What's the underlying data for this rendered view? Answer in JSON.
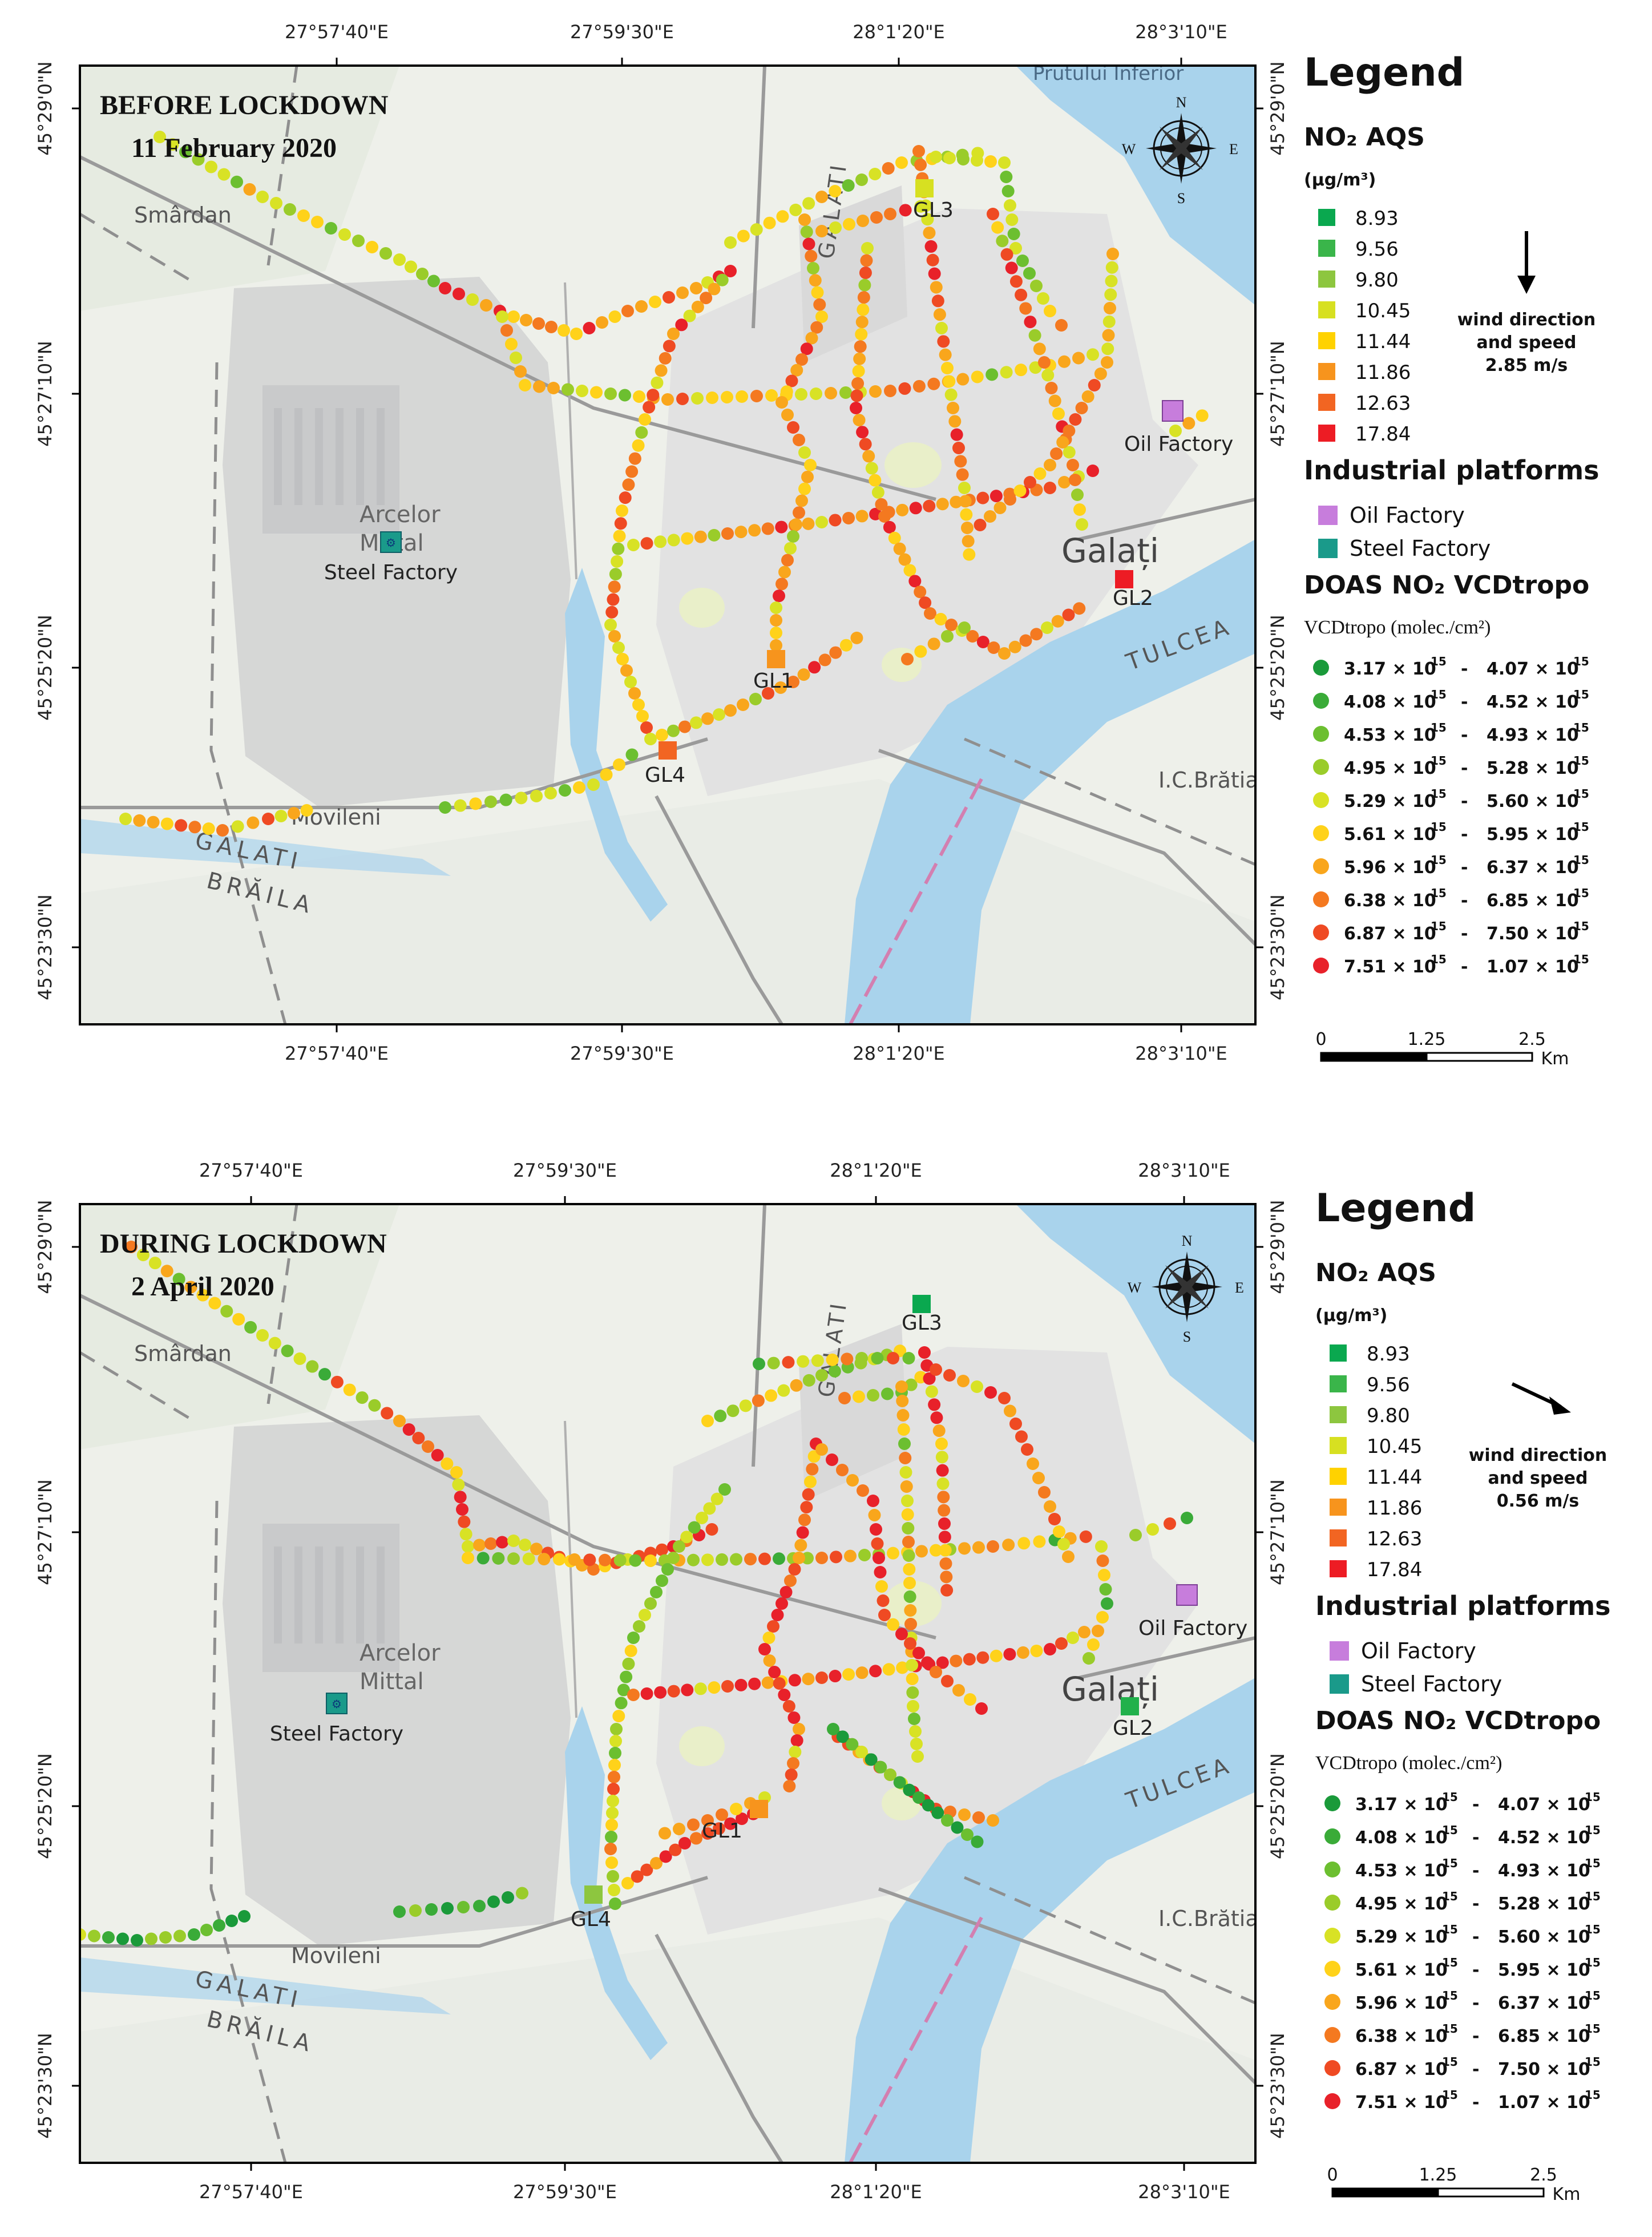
{
  "panels": [
    {
      "id": "before",
      "title_line1": "BEFORE LOCKDOWN",
      "title_line2": "11 February 2020",
      "lon_ticks_top": [
        "27°57'40\"E",
        "27°59'30\"E",
        "28°1'20\"E",
        "28°3'10\"E"
      ],
      "lon_ticks_bottom": [
        "27°57'40\"E",
        "27°59'30\"E",
        "28°1'20\"E",
        "28°3'10\"E"
      ],
      "lat_ticks": [
        "45°29'0\"N",
        "45°27'10\"N",
        "45°25'20\"N",
        "45°23'30\"N"
      ],
      "place_labels": {
        "smardan": "Smârdan",
        "arcelor": "Arcelor",
        "mittal": "Mittal",
        "moviieni": "Movileni",
        "galati_road": "GALATI",
        "braila_road": "BRĂILA",
        "galati_vertical": "GALATI",
        "galati_city": "Galați",
        "tulcea": "TULCEA",
        "icbratianu": "I.C.Brătianu",
        "prutului": "Prutului Inferior"
      },
      "compass": {
        "n": "N",
        "s": "S",
        "e": "E",
        "w": "W"
      },
      "wind": {
        "line1": "wind direction",
        "line2": "and speed",
        "speed": "2.85 m/s",
        "arrow_dir_deg": 90
      },
      "stations": [
        {
          "label": "GL1",
          "color": "#f7941d"
        },
        {
          "label": "GL2",
          "color": "#ed1c24"
        },
        {
          "label": "GL3",
          "color": "#d7e021"
        },
        {
          "label": "GL4",
          "color": "#f26522"
        }
      ],
      "factory_labels": {
        "steel": "Steel Factory",
        "oil": "Oil Factory"
      }
    },
    {
      "id": "during",
      "title_line1": "DURING LOCKDOWN",
      "title_line2": "2 April 2020",
      "lon_ticks_top": [
        "27°57'40\"E",
        "27°59'30\"E",
        "28°1'20\"E",
        "28°3'10\"E"
      ],
      "lon_ticks_bottom": [
        "27°57'40\"E",
        "27°59'30\"E",
        "28°1'20\"E",
        "28°3'10\"E"
      ],
      "lat_ticks": [
        "45°29'0\"N",
        "45°27'10\"N",
        "45°25'20\"N",
        "45°23'30\"N"
      ],
      "place_labels": {
        "smardan": "Smârdan",
        "arcelor": "Arcelor",
        "mittal": "Mittal",
        "moviieni": "Movileni",
        "galati_road": "GALATI",
        "braila_road": "BRĂILA",
        "galati_vertical": "GALATI",
        "galati_city": "Galați",
        "tulcea": "TULCEA",
        "icbratianu": "I.C.Brătianu",
        "prutului": ""
      },
      "compass": {
        "n": "N",
        "s": "S",
        "e": "E",
        "w": "W"
      },
      "wind": {
        "line1": "wind direction",
        "line2": "and speed",
        "speed": "0.56 m/s",
        "arrow_dir_deg": 25
      },
      "stations": [
        {
          "label": "GL1",
          "color": "#f7941d"
        },
        {
          "label": "GL2",
          "color": "#21b14b"
        },
        {
          "label": "GL3",
          "color": "#0aa84f"
        },
        {
          "label": "GL4",
          "color": "#8dc63f"
        }
      ],
      "factory_labels": {
        "steel": "Steel Factory",
        "oil": "Oil Factory"
      }
    }
  ],
  "legend": {
    "title": "Legend",
    "aqs_title": "NO₂ AQS",
    "aqs_unit": "(µg/m³)",
    "aqs_items": [
      {
        "value": "8.93",
        "color": "#0aa84f"
      },
      {
        "value": "9.56",
        "color": "#3ab54a"
      },
      {
        "value": "9.80",
        "color": "#8dc63f"
      },
      {
        "value": "10.45",
        "color": "#d7e021"
      },
      {
        "value": "11.44",
        "color": "#ffd200"
      },
      {
        "value": "11.86",
        "color": "#f7941d"
      },
      {
        "value": "12.63",
        "color": "#f26522"
      },
      {
        "value": "17.84",
        "color": "#ed1c24"
      }
    ],
    "industrial_title": "Industrial platforms",
    "industrial_items": [
      {
        "label": "Oil Factory",
        "color": "#c77ddc"
      },
      {
        "label": "Steel Factory",
        "color": "#1a9a8a"
      }
    ],
    "doas_title": "DOAS NO₂ VCDtropo",
    "doas_unit": "VCDtropo (molec./cm²)",
    "doas_items": [
      {
        "low": "3.17 × 10",
        "high": "4.07 × 10",
        "color": "#1a9a3a"
      },
      {
        "low": "4.08 × 10",
        "high": "4.52 × 10",
        "color": "#3aab38"
      },
      {
        "low": "4.53 × 10",
        "high": "4.93 × 10",
        "color": "#6cbf30"
      },
      {
        "low": "4.95 × 10",
        "high": "5.28 × 10",
        "color": "#9acc2a"
      },
      {
        "low": "5.29 × 10",
        "high": "5.60 × 10",
        "color": "#d8e225"
      },
      {
        "low": "5.61 × 10",
        "high": "5.95 × 10",
        "color": "#ffd21a"
      },
      {
        "low": "5.96 × 10",
        "high": "6.37 × 10",
        "color": "#f9a61c"
      },
      {
        "low": "6.38 × 10",
        "high": "6.85 × 10",
        "color": "#f47920"
      },
      {
        "low": "6.87 × 10",
        "high": "7.50 × 10",
        "color": "#ef4a23"
      },
      {
        "low": "7.51 × 10",
        "high": "1.07 × 10",
        "color": "#e8212a"
      }
    ],
    "exponent": "15",
    "scale": {
      "t0": "0",
      "t1": "1.25",
      "t2": "2.5",
      "unit": "Km"
    }
  }
}
